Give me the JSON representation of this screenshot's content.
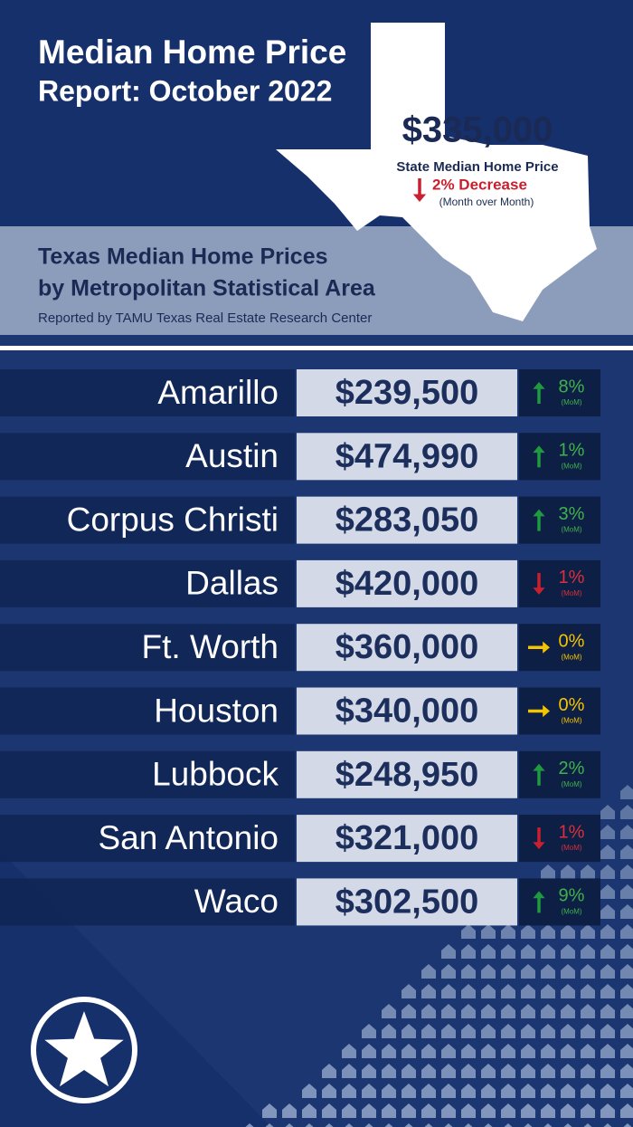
{
  "header": {
    "title": [
      "Median Home Price",
      "Report: October 2022"
    ]
  },
  "state": {
    "price": "$335,000",
    "label": "State Median Home Price",
    "change": "2% Decrease",
    "note": "(Month over Month)",
    "direction": "down"
  },
  "section": {
    "title": [
      "Texas Median Home Prices",
      "by Metropolitan Statistical Area"
    ],
    "source": "Reported by TAMU Texas Real Estate Research Center"
  },
  "rows": [
    {
      "city": "Amarillo",
      "price": "$239,500",
      "change": "8%",
      "note": "(MoM)",
      "direction": "up"
    },
    {
      "city": "Austin",
      "price": "$474,990",
      "change": "1%",
      "note": "(MoM)",
      "direction": "up"
    },
    {
      "city": "Corpus Christi",
      "price": "$283,050",
      "change": "3%",
      "note": "(MoM)",
      "direction": "up"
    },
    {
      "city": "Dallas",
      "price": "$420,000",
      "change": "1%",
      "note": "(MoM)",
      "direction": "down"
    },
    {
      "city": "Ft. Worth",
      "price": "$360,000",
      "change": "0%",
      "note": "(MoM)",
      "direction": "flat"
    },
    {
      "city": "Houston",
      "price": "$340,000",
      "change": "0%",
      "note": "(MoM)",
      "direction": "flat"
    },
    {
      "city": "Lubbock",
      "price": "$248,950",
      "change": "2%",
      "note": "(MoM)",
      "direction": "up"
    },
    {
      "city": "San Antonio",
      "price": "$321,000",
      "change": "1%",
      "note": "(MoM)",
      "direction": "down"
    },
    {
      "city": "Waco",
      "price": "$302,500",
      "change": "9%",
      "note": "(MoM)",
      "direction": "up"
    }
  ]
}
